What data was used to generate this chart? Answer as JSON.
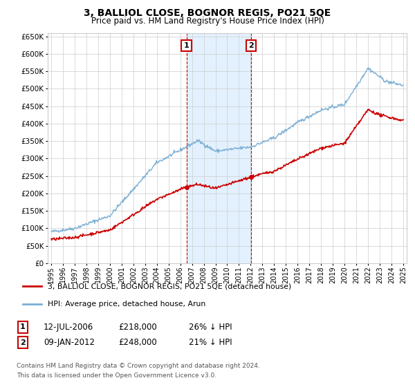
{
  "title": "3, BALLIOL CLOSE, BOGNOR REGIS, PO21 5QE",
  "subtitle": "Price paid vs. HM Land Registry's House Price Index (HPI)",
  "legend_line1": "3, BALLIOL CLOSE, BOGNOR REGIS, PO21 5QE (detached house)",
  "legend_line2": "HPI: Average price, detached house, Arun",
  "annotation1_date": "12-JUL-2006",
  "annotation1_price": "£218,000",
  "annotation1_hpi": "26% ↓ HPI",
  "annotation2_date": "09-JAN-2012",
  "annotation2_price": "£248,000",
  "annotation2_hpi": "21% ↓ HPI",
  "footnote1": "Contains HM Land Registry data © Crown copyright and database right 2024.",
  "footnote2": "This data is licensed under the Open Government Licence v3.0.",
  "ylim_min": 0,
  "ylim_max": 660000,
  "sale1_year": 2006.53,
  "sale1_price": 218000,
  "sale2_year": 2012.03,
  "sale2_price": 248000,
  "hpi_color": "#7bafd4",
  "price_color": "#cc0000",
  "annotation_box_color": "#cc0000",
  "shade_color": "#ddeeff",
  "grid_color": "#cccccc",
  "background_color": "#ffffff"
}
